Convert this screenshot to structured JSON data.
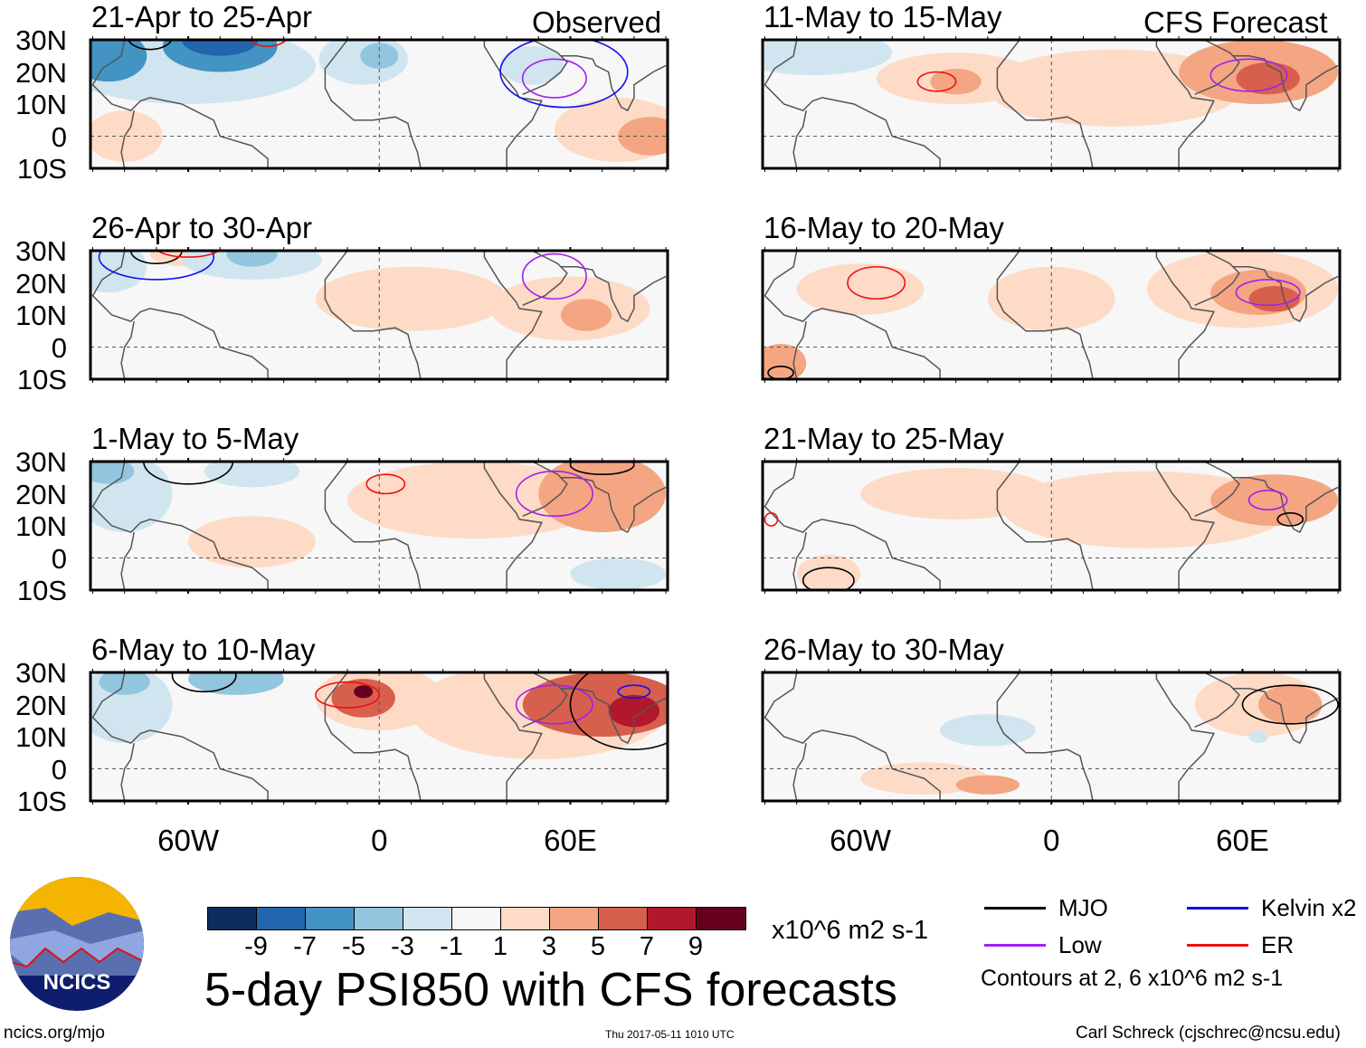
{
  "header": {
    "left_label": "Observed",
    "right_label": "CFS Forecast"
  },
  "axes": {
    "lat_labels": [
      "30N",
      "20N",
      "10N",
      "0",
      "10S"
    ],
    "lon_labels": [
      "60W",
      "0",
      "60E"
    ]
  },
  "panels": [
    {
      "title": "21-Apr to 25-Apr",
      "blobs": [
        [
          -60,
          22,
          40,
          12,
          -3
        ],
        [
          -85,
          25,
          12,
          8,
          -7
        ],
        [
          -50,
          28,
          18,
          8,
          -7
        ],
        [
          -50,
          30,
          12,
          5,
          -9
        ],
        [
          -5,
          24,
          14,
          8,
          -3
        ],
        [
          0,
          25,
          6,
          4,
          -5
        ],
        [
          10,
          10,
          45,
          10,
          -1
        ],
        [
          48,
          22,
          10,
          6,
          -3
        ],
        [
          -40,
          17,
          5,
          4,
          1
        ],
        [
          -80,
          0,
          12,
          8,
          1
        ],
        [
          75,
          2,
          20,
          10,
          1
        ],
        [
          85,
          0,
          10,
          6,
          3
        ]
      ],
      "contours": [
        [
          -72,
          31,
          7,
          4,
          "black"
        ],
        [
          -35,
          31,
          6,
          3,
          "red"
        ],
        [
          58,
          20,
          20,
          11,
          "blue"
        ],
        [
          55,
          18,
          10,
          6,
          "purple"
        ]
      ]
    },
    {
      "title": "26-Apr to 30-Apr",
      "blobs": [
        [
          -85,
          25,
          12,
          8,
          -3
        ],
        [
          -40,
          27,
          22,
          6,
          -3
        ],
        [
          -40,
          29,
          8,
          4,
          -5
        ],
        [
          10,
          15,
          30,
          10,
          1
        ],
        [
          60,
          12,
          25,
          10,
          1
        ],
        [
          65,
          10,
          8,
          5,
          3
        ],
        [
          -60,
          29,
          12,
          4,
          1
        ],
        [
          20,
          -7,
          40,
          5,
          -1
        ]
      ],
      "contours": [
        [
          -70,
          28,
          18,
          7,
          "blue"
        ],
        [
          -70,
          30,
          8,
          4,
          "black"
        ],
        [
          -60,
          31,
          10,
          3,
          "red"
        ],
        [
          55,
          22,
          10,
          7,
          "purple"
        ]
      ]
    },
    {
      "title": "1-May to 5-May",
      "blobs": [
        [
          -80,
          20,
          15,
          12,
          -3
        ],
        [
          -85,
          27,
          8,
          4,
          -5
        ],
        [
          -40,
          27,
          15,
          5,
          -3
        ],
        [
          30,
          18,
          40,
          12,
          1
        ],
        [
          -40,
          5,
          20,
          8,
          1
        ],
        [
          70,
          20,
          20,
          12,
          3
        ],
        [
          75,
          -5,
          15,
          5,
          -3
        ],
        [
          40,
          -5,
          30,
          5,
          -1
        ]
      ],
      "contours": [
        [
          -60,
          30,
          14,
          7,
          "black"
        ],
        [
          2,
          23,
          6,
          3,
          "red"
        ],
        [
          55,
          20,
          12,
          7,
          "purple"
        ],
        [
          70,
          29,
          10,
          3,
          "black"
        ]
      ]
    },
    {
      "title": "6-May to 10-May",
      "blobs": [
        [
          -80,
          20,
          15,
          12,
          -3
        ],
        [
          -80,
          27,
          8,
          4,
          -5
        ],
        [
          -45,
          28,
          15,
          5,
          -5
        ],
        [
          0,
          22,
          20,
          10,
          1
        ],
        [
          -5,
          22,
          10,
          6,
          5
        ],
        [
          -5,
          24,
          3,
          2,
          9
        ],
        [
          50,
          18,
          40,
          15,
          1
        ],
        [
          70,
          20,
          25,
          10,
          5
        ],
        [
          80,
          18,
          8,
          5,
          7
        ],
        [
          40,
          -5,
          30,
          5,
          -1
        ]
      ],
      "contours": [
        [
          -55,
          29,
          10,
          5,
          "black"
        ],
        [
          -10,
          23,
          10,
          4,
          "red"
        ],
        [
          55,
          20,
          12,
          6,
          "purple"
        ],
        [
          80,
          24,
          5,
          2,
          "blue"
        ],
        [
          80,
          20,
          20,
          14,
          "black"
        ]
      ]
    },
    {
      "title": "11-May to 15-May",
      "blobs": [
        [
          -75,
          26,
          25,
          7,
          -3
        ],
        [
          -30,
          18,
          25,
          8,
          1
        ],
        [
          -30,
          17,
          8,
          4,
          3
        ],
        [
          20,
          15,
          40,
          12,
          1
        ],
        [
          65,
          20,
          25,
          10,
          3
        ],
        [
          68,
          18,
          10,
          5,
          5
        ],
        [
          60,
          -3,
          20,
          5,
          -1
        ]
      ],
      "contours": [
        [
          -36,
          17,
          6,
          3,
          "red"
        ],
        [
          62,
          19,
          12,
          5,
          "purple"
        ]
      ]
    },
    {
      "title": "16-May to 20-May",
      "blobs": [
        [
          -80,
          20,
          15,
          10,
          -1
        ],
        [
          -60,
          18,
          20,
          8,
          1
        ],
        [
          -85,
          -5,
          8,
          6,
          3
        ],
        [
          0,
          15,
          20,
          10,
          1
        ],
        [
          60,
          18,
          30,
          12,
          1
        ],
        [
          65,
          17,
          15,
          7,
          3
        ],
        [
          70,
          15,
          8,
          4,
          5
        ],
        [
          30,
          -3,
          30,
          6,
          -1
        ]
      ],
      "contours": [
        [
          -55,
          20,
          9,
          5,
          "red"
        ],
        [
          68,
          17,
          10,
          4,
          "purple"
        ],
        [
          -85,
          -8,
          4,
          2,
          "black"
        ]
      ]
    },
    {
      "title": "21-May to 25-May",
      "blobs": [
        [
          -80,
          20,
          15,
          10,
          -1
        ],
        [
          -30,
          20,
          30,
          8,
          1
        ],
        [
          30,
          15,
          45,
          12,
          1
        ],
        [
          70,
          18,
          20,
          8,
          3
        ],
        [
          60,
          -3,
          25,
          6,
          -1
        ],
        [
          -70,
          -5,
          10,
          6,
          1
        ]
      ],
      "contours": [
        [
          68,
          18,
          6,
          3,
          "purple"
        ],
        [
          75,
          12,
          4,
          2,
          "black"
        ],
        [
          -70,
          -7,
          8,
          4,
          "black"
        ],
        [
          -88,
          12,
          2,
          2,
          "red"
        ]
      ]
    },
    {
      "title": "26-May to 30-May",
      "blobs": [
        [
          -50,
          13,
          50,
          10,
          -1
        ],
        [
          -20,
          12,
          15,
          5,
          -3
        ],
        [
          -40,
          -3,
          20,
          5,
          1
        ],
        [
          -20,
          -5,
          10,
          3,
          3
        ],
        [
          60,
          5,
          20,
          8,
          -1
        ],
        [
          65,
          20,
          20,
          10,
          1
        ],
        [
          75,
          20,
          10,
          6,
          3
        ],
        [
          65,
          10,
          3,
          2,
          -3
        ]
      ],
      "contours": [
        [
          75,
          20,
          15,
          6,
          "black"
        ]
      ]
    }
  ],
  "legend": {
    "values": [
      "-9",
      "-7",
      "-5",
      "-3",
      "-1",
      "1",
      "3",
      "5",
      "7",
      "9"
    ],
    "colors": [
      "#0b2e5f",
      "#2166ac",
      "#4393c3",
      "#92c5de",
      "#d1e5f0",
      "#f7f7f7",
      "#fddbc7",
      "#f4a582",
      "#d6604d",
      "#b2182b",
      "#67001f"
    ],
    "units": "x10^6 m2 s-1"
  },
  "contour_legend": {
    "items": [
      {
        "label": "MJO",
        "color": "#000000"
      },
      {
        "label": "Kelvin x2",
        "color": "#1010ee"
      },
      {
        "label": "Low",
        "color": "#a020f0"
      },
      {
        "label": "ER",
        "color": "#ee1010"
      }
    ],
    "note": "Contours at 2, 6 x10^6 m2 s-1"
  },
  "footer": {
    "title": "5-day PSI850 with CFS forecasts",
    "logo_text": "NCICS",
    "website": "ncics.org/mjo",
    "timestamp": "Thu 2017-05-11 1010 UTC",
    "author": "Carl Schreck (cjschrec@ncsu.edu)"
  }
}
